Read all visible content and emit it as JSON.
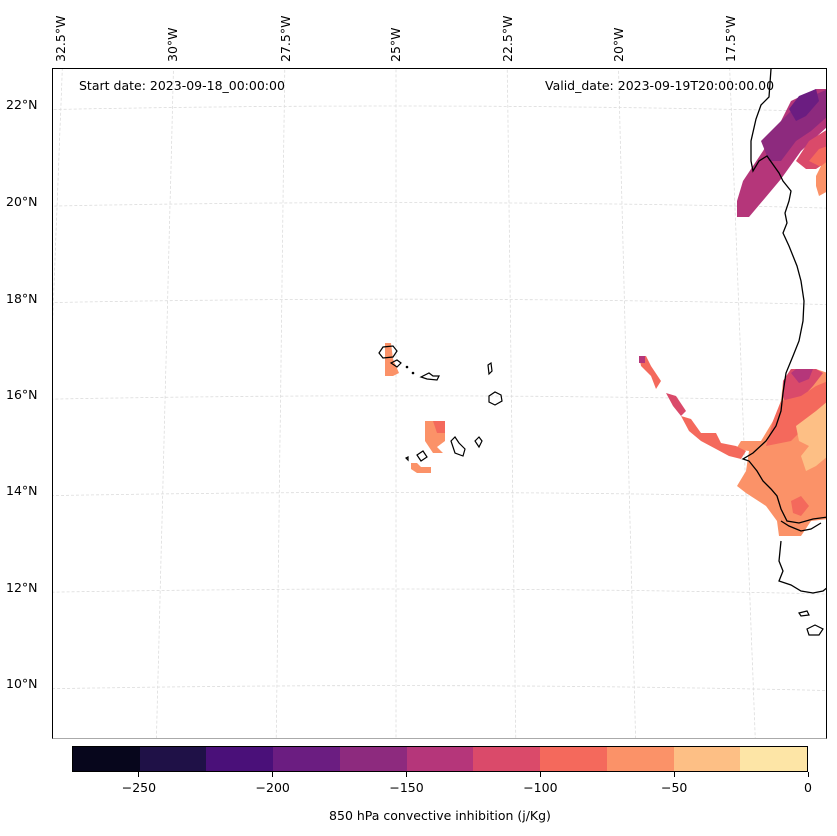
{
  "chart_data": {
    "type": "heatmap",
    "title": "",
    "start_date_label": "Start date: 2023-09-18_00:00:00",
    "valid_date_label": "Valid_date: 2023-09-19T20:00:00.00",
    "projection": "conic (lon/lat gridlines)",
    "lon_ticks": [
      "32.5°W",
      "30°W",
      "27.5°W",
      "25°W",
      "22.5°W",
      "20°W",
      "17.5°W"
    ],
    "lon_values": [
      -32.5,
      -30,
      -27.5,
      -25,
      -22.5,
      -20,
      -17.5
    ],
    "lat_ticks": [
      "22°N",
      "20°N",
      "18°N",
      "16°N",
      "14°N",
      "12°N",
      "10°N"
    ],
    "lat_values": [
      22,
      20,
      18,
      16,
      14,
      12,
      10
    ],
    "lon_range": [
      -33,
      -16
    ],
    "lat_range": [
      9,
      22.8
    ],
    "grid": true,
    "colorbar": {
      "label": "850 hPa convective inhibition (j/Kg)",
      "orientation": "horizontal",
      "placement": "bottom",
      "range": [
        -275,
        0
      ],
      "levels": [
        -275,
        -250,
        -225,
        -200,
        -175,
        -150,
        -125,
        -100,
        -75,
        -50,
        -25,
        0
      ],
      "tick_values": [
        -250,
        -200,
        -150,
        -100,
        -50,
        0
      ],
      "tick_labels": [
        "−250",
        "−200",
        "−150",
        "−100",
        "−50",
        "0"
      ],
      "colors": [
        "#07061c",
        "#1f1147",
        "#4a1079",
        "#6b1d81",
        "#8d2a7e",
        "#b5367a",
        "#da4a6a",
        "#f4695c",
        "#fb9268",
        "#fdbf85",
        "#fde5a6"
      ],
      "colormap": "magma"
    },
    "regions": [
      {
        "name": "Western Sahara / Mauritania coast band",
        "lat": [
          19.7,
          22.3
        ],
        "lon": [
          -17.8,
          -16
        ],
        "values_range": [
          -175,
          -25
        ],
        "dominant": -125
      },
      {
        "name": "Senegal / Mauritania south",
        "lat": [
          12.9,
          16.5
        ],
        "lon": [
          -18.2,
          -16
        ],
        "values_range": [
          -125,
          0
        ],
        "dominant": -50
      },
      {
        "name": "Offshore streak",
        "lat": [
          14.6,
          16.9
        ],
        "lon": [
          -20.1,
          -17.5
        ],
        "values_range": [
          -125,
          -50
        ],
        "dominant": -75
      },
      {
        "name": "Cape Verde north",
        "lat": [
          16.4,
          17.1
        ],
        "lon": [
          -25.1,
          -24.8
        ],
        "values_range": [
          -50,
          -25
        ],
        "dominant": -50
      },
      {
        "name": "Cape Verde south",
        "lat": [
          14.4,
          15.5
        ],
        "lon": [
          -24.4,
          -23.9
        ],
        "values_range": [
          -75,
          -25
        ],
        "dominant": -50
      }
    ]
  }
}
